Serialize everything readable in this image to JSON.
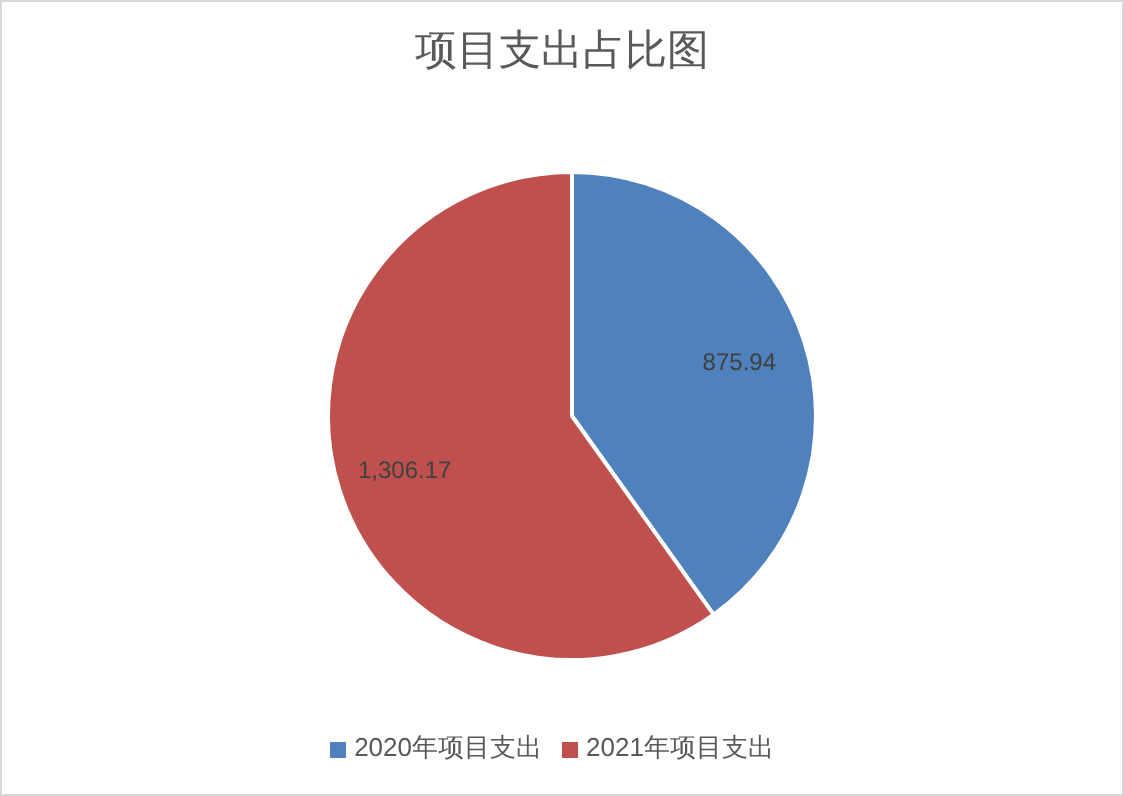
{
  "chart_data": {
    "type": "pie",
    "title": "项目支出占比图",
    "categories": [
      "2020年项目支出",
      "2021年项目支出"
    ],
    "values": [
      875.94,
      1306.17
    ],
    "colors": [
      "#4f81bd",
      "#c0504d"
    ],
    "value_labels": [
      "875.94",
      "1,306.17"
    ],
    "legend": "bottom"
  }
}
